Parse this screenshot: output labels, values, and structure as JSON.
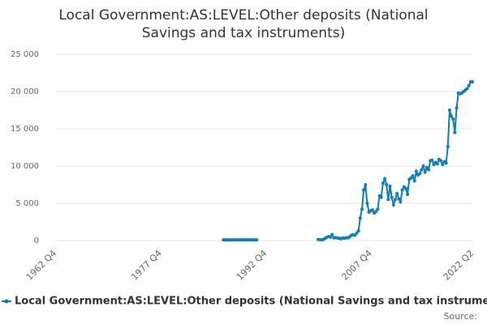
{
  "chart_data": {
    "type": "line",
    "title": "Local Government:AS:LEVEL:Other deposits (National Savings and tax instruments)",
    "source": "Source:",
    "categories": [
      "1962 Q4",
      null,
      null,
      null,
      null,
      null,
      null,
      null,
      null,
      null,
      null,
      null,
      null,
      null,
      null,
      null,
      null,
      null,
      null,
      null,
      null,
      null,
      null,
      null,
      null,
      null,
      null,
      null,
      null,
      null,
      null,
      null,
      null,
      null,
      null,
      null,
      null,
      null,
      null,
      null,
      null,
      null,
      null,
      null,
      null,
      null,
      null,
      null,
      null,
      null,
      null,
      null,
      null,
      null,
      null,
      null,
      null,
      null,
      null,
      null,
      "1977 Q4",
      null,
      null,
      null,
      null,
      null,
      null,
      null,
      null,
      null,
      null,
      null,
      null,
      null,
      null,
      null,
      null,
      null,
      null,
      null,
      null,
      null,
      null,
      null,
      null,
      null,
      null,
      null,
      null,
      null,
      null,
      null,
      null,
      null,
      null,
      null,
      null,
      null,
      null,
      null,
      null,
      null,
      null,
      null,
      null,
      null,
      null,
      null,
      null,
      null,
      null,
      null,
      null,
      null,
      null,
      null,
      null,
      null,
      null,
      null,
      "1992 Q4",
      null,
      null,
      null,
      null,
      null,
      null,
      null,
      null,
      null,
      null,
      null,
      null,
      null,
      null,
      null,
      null,
      null,
      null,
      null,
      null,
      null,
      null,
      null,
      null,
      null,
      null,
      null,
      null,
      null,
      null,
      null,
      null,
      null,
      null,
      null,
      null,
      null,
      null,
      null,
      null,
      null,
      null,
      null,
      null,
      null,
      null,
      null,
      null,
      null,
      null,
      null,
      null,
      null,
      null,
      null,
      null,
      null,
      null,
      null,
      "2007 Q4",
      null,
      null,
      null,
      null,
      null,
      null,
      null,
      null,
      null,
      null,
      null,
      null,
      null,
      null,
      null,
      null,
      null,
      null,
      null,
      null,
      null,
      null,
      null,
      null,
      null,
      null,
      null,
      null,
      null,
      null,
      null,
      null,
      null,
      null,
      null,
      null,
      null,
      null,
      null,
      null,
      null,
      null,
      null,
      null,
      null,
      null,
      null,
      null,
      null,
      null,
      null,
      null,
      null,
      null,
      null,
      null,
      null,
      "2022 Q2"
    ],
    "series": [
      {
        "name": "Local Government:AS:LEVEL:Other deposits (National Savings and tax instruments)",
        "color": "#0e7eb5",
        "values": [
          null,
          null,
          null,
          null,
          null,
          null,
          null,
          null,
          null,
          null,
          null,
          null,
          null,
          null,
          null,
          null,
          null,
          null,
          null,
          null,
          null,
          null,
          null,
          null,
          null,
          null,
          null,
          null,
          null,
          null,
          null,
          null,
          null,
          null,
          null,
          null,
          null,
          null,
          null,
          null,
          null,
          null,
          null,
          null,
          null,
          null,
          null,
          null,
          null,
          null,
          null,
          null,
          null,
          null,
          null,
          null,
          null,
          null,
          null,
          null,
          null,
          null,
          null,
          null,
          null,
          null,
          null,
          null,
          null,
          null,
          null,
          null,
          null,
          null,
          null,
          null,
          null,
          null,
          null,
          null,
          null,
          null,
          null,
          null,
          null,
          null,
          null,
          null,
          null,
          null,
          null,
          null,
          null,
          null,
          null,
          null,
          100,
          100,
          100,
          100,
          100,
          100,
          100,
          100,
          100,
          100,
          100,
          100,
          100,
          100,
          100,
          100,
          100,
          100,
          100,
          100,
          null,
          null,
          null,
          null,
          null,
          null,
          null,
          null,
          null,
          null,
          null,
          null,
          null,
          null,
          null,
          null,
          null,
          null,
          null,
          null,
          null,
          null,
          null,
          null,
          null,
          null,
          null,
          null,
          null,
          null,
          null,
          null,
          null,
          null,
          150,
          120,
          100,
          150,
          300,
          450,
          550,
          450,
          800,
          350,
          400,
          350,
          300,
          250,
          350,
          300,
          400,
          350,
          500,
          700,
          800,
          700,
          1000,
          1300,
          3000,
          4200,
          6800,
          7500,
          5000,
          3800,
          4000,
          4100,
          3700,
          3900,
          4200,
          6000,
          5800,
          7700,
          8300,
          7500,
          5500,
          7300,
          5800,
          4800,
          5500,
          6300,
          5600,
          5200,
          6800,
          7200,
          7000,
          6200,
          8200,
          8400,
          8700,
          8000,
          9300,
          8800,
          9000,
          9500,
          10000,
          9200,
          9800,
          9500,
          10700,
          10800,
          10200,
          10500,
          10300,
          10900,
          10700,
          10200,
          10600,
          10400,
          12600,
          17500,
          16700,
          16300,
          14500,
          17800,
          19800,
          19700,
          19800,
          20000,
          20200,
          20400,
          20800,
          21300,
          21300
        ]
      }
    ],
    "ylim": [
      0,
      25000
    ],
    "yticks": [
      0,
      {
        "value": 5000,
        "label": "5 000"
      },
      {
        "value": 10000,
        "label": "10 000"
      },
      {
        "value": 15000,
        "label": "15 000"
      },
      {
        "value": 20000,
        "label": "20 000"
      },
      {
        "value": 25000,
        "label": "25 000"
      }
    ],
    "grid": true
  }
}
